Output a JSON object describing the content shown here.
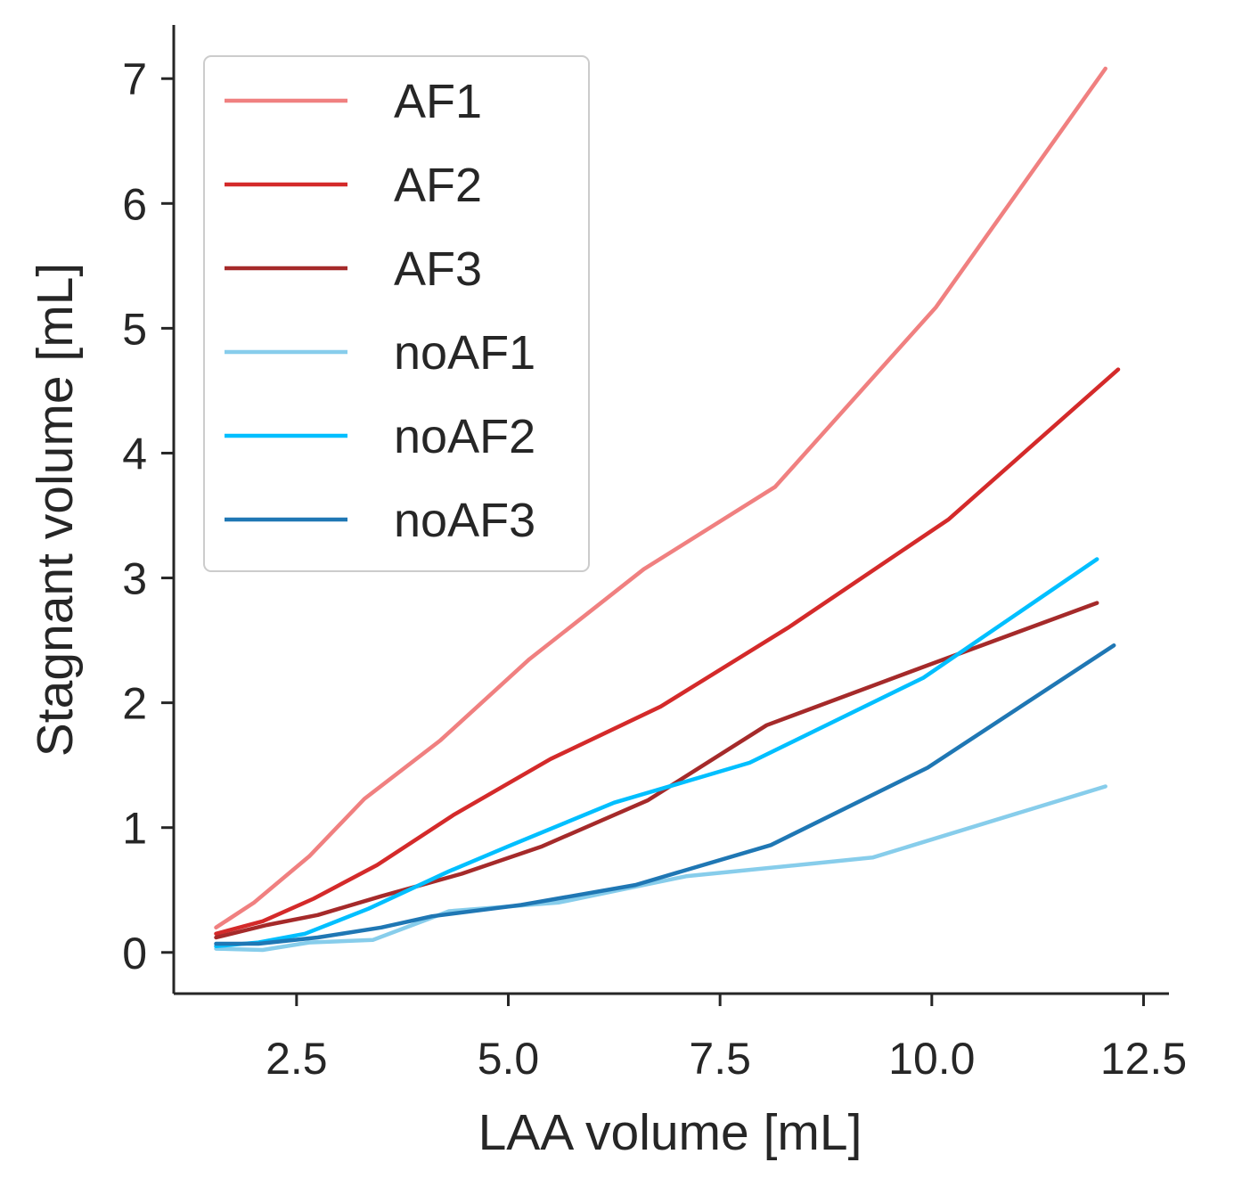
{
  "chart_data": {
    "type": "line",
    "title": "",
    "xlabel": "LAA volume [mL]",
    "ylabel": "Stagnant volume [mL]",
    "xlim": [
      1.05,
      12.8
    ],
    "ylim": [
      -0.33,
      7.43
    ],
    "xticks": [
      "2.5",
      "5.0",
      "7.5",
      "10.0",
      "12.5"
    ],
    "xtick_values": [
      2.5,
      5.0,
      7.5,
      10.0,
      12.5
    ],
    "yticks": [
      "0",
      "1",
      "2",
      "3",
      "4",
      "5",
      "6",
      "7"
    ],
    "ytick_values": [
      0,
      1,
      2,
      3,
      4,
      5,
      6,
      7
    ],
    "grid": false,
    "legend_position": "top-left",
    "axis_color": "#262626",
    "series": [
      {
        "name": "AF1",
        "color": "#f08080",
        "x": [
          1.55,
          2.0,
          2.65,
          3.3,
          4.2,
          5.25,
          6.6,
          8.15,
          10.05,
          12.05
        ],
        "y": [
          0.2,
          0.4,
          0.77,
          1.23,
          1.7,
          2.35,
          3.07,
          3.73,
          5.17,
          7.08
        ]
      },
      {
        "name": "AF2",
        "color": "#d42a2a",
        "x": [
          1.55,
          2.1,
          2.7,
          3.45,
          4.35,
          5.5,
          6.8,
          8.3,
          10.2,
          12.2
        ],
        "y": [
          0.15,
          0.25,
          0.43,
          0.7,
          1.1,
          1.55,
          1.97,
          2.6,
          3.47,
          4.67
        ]
      },
      {
        "name": "AF3",
        "color": "#a52a2a",
        "x": [
          1.55,
          2.15,
          2.75,
          3.5,
          4.45,
          5.4,
          6.65,
          8.05,
          9.95,
          11.95
        ],
        "y": [
          0.12,
          0.22,
          0.3,
          0.45,
          0.63,
          0.85,
          1.22,
          1.82,
          2.3,
          2.8
        ]
      },
      {
        "name": "noAF1",
        "color": "#87cdeb",
        "x": [
          1.55,
          2.1,
          2.65,
          3.4,
          4.3,
          5.6,
          7.1,
          9.3,
          12.05
        ],
        "y": [
          0.03,
          0.02,
          0.08,
          0.1,
          0.33,
          0.4,
          0.61,
          0.76,
          1.33
        ]
      },
      {
        "name": "noAF2",
        "color": "#00bfff",
        "x": [
          1.55,
          2.05,
          2.6,
          3.35,
          4.3,
          5.0,
          6.25,
          7.85,
          9.9,
          11.95
        ],
        "y": [
          0.05,
          0.08,
          0.15,
          0.35,
          0.65,
          0.85,
          1.2,
          1.52,
          2.2,
          3.15
        ]
      },
      {
        "name": "noAF3",
        "color": "#1f77b4",
        "x": [
          1.55,
          2.05,
          2.75,
          3.5,
          4.1,
          5.15,
          6.5,
          8.1,
          9.95,
          12.15
        ],
        "y": [
          0.07,
          0.07,
          0.12,
          0.2,
          0.29,
          0.38,
          0.54,
          0.86,
          1.48,
          2.46
        ]
      }
    ]
  }
}
